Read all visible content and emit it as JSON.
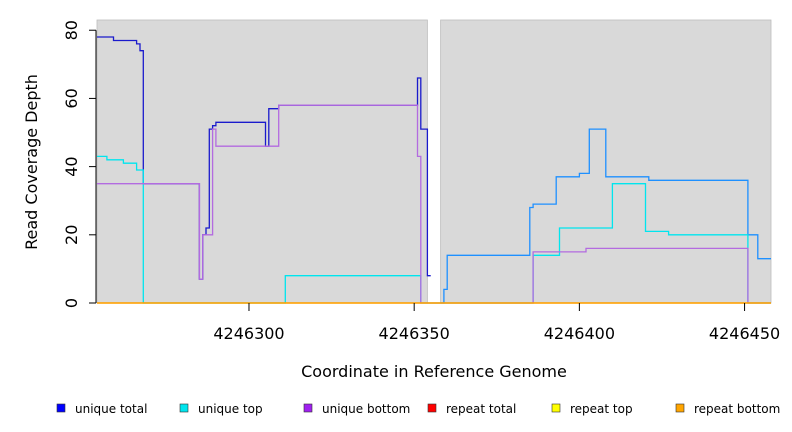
{
  "chart_data": {
    "type": "line",
    "title": "",
    "xlabel": "Coordinate in Reference Genome",
    "ylabel": "Read Coverage Depth",
    "xlim": [
      4246254,
      4246458
    ],
    "ylim": [
      0,
      83
    ],
    "y_ticks": [
      0,
      20,
      40,
      60,
      80
    ],
    "x_ticks": [
      4246300,
      4246350,
      4246400,
      4246450
    ],
    "panels": [
      [
        4246254,
        4246354
      ],
      [
        4246358,
        4246458
      ]
    ],
    "gap_region": [
      4246354,
      4246358
    ],
    "background_color": "#d9d9d9",
    "grid": false,
    "legend_position": "bottom",
    "series": [
      {
        "name": "unique total",
        "color": "#0000ff",
        "line_color": "#1a1acc",
        "x": [
          4246254,
          4246259,
          4246259,
          4246266,
          4246266,
          4246267,
          4246267,
          4246268,
          4246268,
          4246285,
          4246285,
          4246286,
          4246286,
          4246287,
          4246287,
          4246288,
          4246288,
          4246289,
          4246289,
          4246290,
          4246290,
          4246305,
          4246305,
          4246306,
          4246306,
          4246309,
          4246309,
          4246351,
          4246351,
          4246352,
          4246352,
          4246354,
          4246354,
          4246355
        ],
        "y": [
          78,
          78,
          77,
          77,
          76,
          76,
          74,
          74,
          35,
          35,
          7,
          7,
          20,
          20,
          22,
          22,
          51,
          51,
          52,
          52,
          53,
          53,
          46,
          46,
          57,
          57,
          58,
          58,
          66,
          66,
          51,
          51,
          8,
          8
        ]
      },
      {
        "name": "unique total (panel 2)",
        "color": "#1e90ff",
        "x": [
          4246358,
          4246359,
          4246359,
          4246360,
          4246360,
          4246385,
          4246385,
          4246386,
          4246386,
          4246393,
          4246393,
          4246400,
          4246400,
          4246403,
          4246403,
          4246408,
          4246408,
          4246421,
          4246421,
          4246427,
          4246427,
          4246451,
          4246451,
          4246454,
          4246454,
          4246458
        ],
        "y": [
          0,
          0,
          4,
          4,
          14,
          14,
          28,
          28,
          29,
          29,
          37,
          37,
          38,
          38,
          51,
          51,
          37,
          37,
          36,
          36,
          36,
          36,
          20,
          20,
          13,
          13
        ]
      },
      {
        "name": "unique top",
        "color": "#00e5ee",
        "x": [
          4246254,
          4246257,
          4246257,
          4246262,
          4246262,
          4246266,
          4246266,
          4246268,
          4246268,
          4246311,
          4246311,
          4246352,
          4246352,
          4246354,
          4246358,
          4246386,
          4246386,
          4246394,
          4246394,
          4246403,
          4246403,
          4246410,
          4246410,
          4246420,
          4246420,
          4246427,
          4246427,
          4246451,
          4246451,
          4246458
        ],
        "y": [
          43,
          43,
          42,
          42,
          41,
          41,
          39,
          39,
          0,
          0,
          8,
          8,
          0,
          0,
          0,
          0,
          14,
          14,
          22,
          22,
          22,
          22,
          35,
          35,
          21,
          21,
          20,
          20,
          0,
          0
        ]
      },
      {
        "name": "unique bottom",
        "color": "#a020f0",
        "line_color": "#b36be0",
        "x": [
          4246254,
          4246268,
          4246268,
          4246285,
          4246285,
          4246286,
          4246286,
          4246289,
          4246289,
          4246290,
          4246290,
          4246309,
          4246309,
          4246351,
          4246351,
          4246352,
          4246352,
          4246354,
          4246358,
          4246386,
          4246386,
          4246402,
          4246402,
          4246451,
          4246451,
          4246458
        ],
        "y": [
          35,
          35,
          35,
          35,
          7,
          7,
          20,
          20,
          51,
          51,
          46,
          46,
          58,
          58,
          43,
          43,
          0,
          0,
          0,
          0,
          15,
          15,
          16,
          16,
          0,
          0
        ]
      },
      {
        "name": "repeat total",
        "color": "#ff0000",
        "x": [
          4246254,
          4246354,
          4246358,
          4246458
        ],
        "y": [
          0,
          0,
          0,
          0
        ]
      },
      {
        "name": "repeat top",
        "color": "#ffff00",
        "x": [
          4246254,
          4246354,
          4246358,
          4246458
        ],
        "y": [
          0,
          0,
          0,
          0
        ]
      },
      {
        "name": "repeat bottom",
        "color": "#ffa500",
        "x": [
          4246254,
          4246354,
          4246358,
          4246458
        ],
        "y": [
          0,
          0,
          0,
          0
        ]
      }
    ],
    "legend": [
      {
        "label": "unique total",
        "color": "#0000ff"
      },
      {
        "label": "unique top",
        "color": "#00e5ee"
      },
      {
        "label": "unique bottom",
        "color": "#a020f0"
      },
      {
        "label": "repeat total",
        "color": "#ff0000"
      },
      {
        "label": "repeat top",
        "color": "#ffff00"
      },
      {
        "label": "repeat bottom",
        "color": "#ffa500"
      }
    ]
  }
}
